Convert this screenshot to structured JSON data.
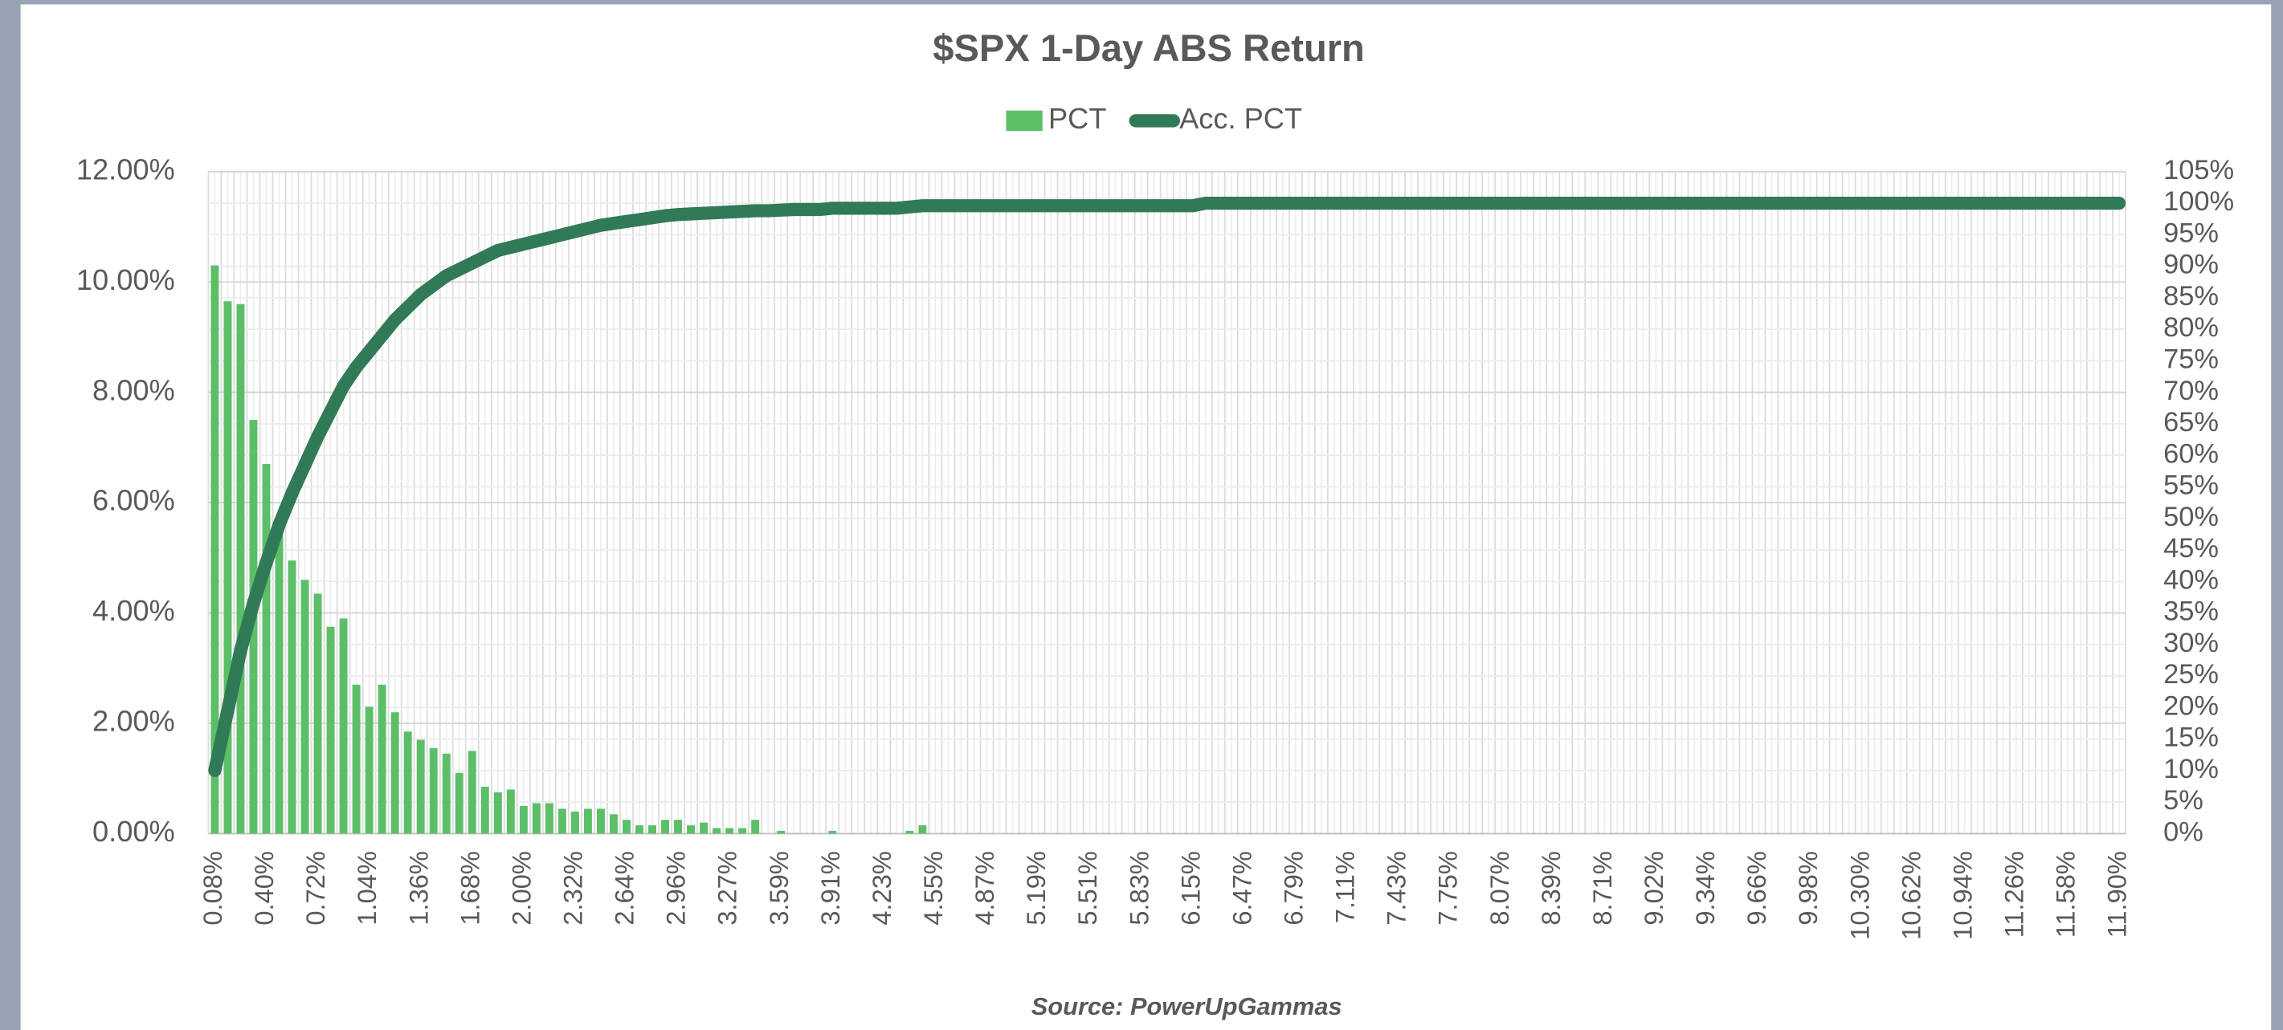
{
  "chart_data": {
    "type": "bar",
    "title": "$SPX 1-Day ABS Return",
    "source": "Source: PowerUpGammas",
    "categories": [
      "0.08%",
      null,
      null,
      null,
      "0.40%",
      null,
      null,
      null,
      "0.72%",
      null,
      null,
      null,
      "1.04%",
      null,
      null,
      null,
      "1.36%",
      null,
      null,
      null,
      "1.68%",
      null,
      null,
      null,
      "2.00%",
      null,
      null,
      null,
      "2.32%",
      null,
      null,
      null,
      "2.64%",
      null,
      null,
      null,
      "2.96%",
      null,
      null,
      null,
      "3.27%",
      null,
      null,
      null,
      "3.59%",
      null,
      null,
      null,
      "3.91%",
      null,
      null,
      null,
      "4.23%",
      null,
      null,
      null,
      "4.55%",
      null,
      null,
      null,
      "4.87%",
      null,
      null,
      null,
      "5.19%",
      null,
      null,
      null,
      "5.51%",
      null,
      null,
      null,
      "5.83%",
      null,
      null,
      null,
      "6.15%",
      null,
      null,
      null,
      "6.47%",
      null,
      null,
      null,
      "6.79%",
      null,
      null,
      null,
      "7.11%",
      null,
      null,
      null,
      "7.43%",
      null,
      null,
      null,
      "7.75%",
      null,
      null,
      null,
      "8.07%",
      null,
      null,
      null,
      "8.39%",
      null,
      null,
      null,
      "8.71%",
      null,
      null,
      null,
      "9.02%",
      null,
      null,
      null,
      "9.34%",
      null,
      null,
      null,
      "9.66%",
      null,
      null,
      null,
      "9.98%",
      null,
      null,
      null,
      "10.30%",
      null,
      null,
      null,
      "10.62%",
      null,
      null,
      null,
      "10.94%",
      null,
      null,
      null,
      "11.26%",
      null,
      null,
      null,
      "11.58%",
      null,
      null,
      null,
      "11.90%"
    ],
    "series": [
      {
        "name": "PCT",
        "type": "bar",
        "color": "#5cbf68",
        "values": [
          10.3,
          9.65,
          9.6,
          7.5,
          6.7,
          5.5,
          4.95,
          4.6,
          4.35,
          3.75,
          3.9,
          2.7,
          2.3,
          2.7,
          2.2,
          1.85,
          1.7,
          1.55,
          1.45,
          1.1,
          1.5,
          0.85,
          0.75,
          0.8,
          0.5,
          0.55,
          0.55,
          0.45,
          0.4,
          0.45,
          0.45,
          0.35,
          0.25,
          0.15,
          0.15,
          0.25,
          0.25,
          0.15,
          0.2,
          0.1,
          0.1,
          0.1,
          0.25,
          0,
          0.05,
          0,
          0,
          0,
          0.05,
          0,
          0,
          0,
          0,
          0,
          0.05,
          0.15,
          0,
          0,
          0,
          0,
          0,
          0,
          0,
          0,
          0,
          0,
          0,
          0,
          0,
          0,
          0,
          0,
          0,
          0,
          0,
          0,
          0,
          0,
          0,
          0,
          0,
          0,
          0,
          0,
          0,
          0,
          0,
          0,
          0,
          0,
          0,
          0,
          0,
          0,
          0,
          0,
          0,
          0,
          0,
          0,
          0,
          0,
          0,
          0,
          0,
          0,
          0,
          0,
          0,
          0,
          0,
          0,
          0,
          0,
          0,
          0,
          0,
          0,
          0,
          0,
          0,
          0,
          0,
          0,
          0,
          0,
          0,
          0,
          0,
          0,
          0,
          0,
          0,
          0,
          0,
          0,
          0,
          0,
          0,
          0,
          0,
          0,
          0,
          0,
          0,
          0,
          0,
          0,
          0
        ]
      },
      {
        "name": "Acc. PCT",
        "type": "line",
        "axis": "y2",
        "color": "#317a57",
        "values": [
          10,
          19.5,
          29,
          36.5,
          43,
          49,
          54,
          58.5,
          63,
          67,
          71,
          74,
          76.5,
          79,
          81.5,
          83.5,
          85.5,
          87,
          88.5,
          89.5,
          90.5,
          91.5,
          92.5,
          93,
          93.5,
          94,
          94.5,
          95,
          95.5,
          96,
          96.5,
          96.8,
          97.1,
          97.4,
          97.7,
          98,
          98.2,
          98.3,
          98.4,
          98.5,
          98.6,
          98.7,
          98.8,
          98.8,
          98.9,
          99,
          99,
          99,
          99.2,
          99.2,
          99.2,
          99.2,
          99.2,
          99.2,
          99.4,
          99.6,
          99.6,
          99.6,
          99.6,
          99.6,
          99.6,
          99.6,
          99.6,
          99.6,
          99.6,
          99.6,
          99.6,
          99.6,
          99.6,
          99.6,
          99.6,
          99.6,
          99.6,
          99.6,
          99.6,
          99.6,
          99.6,
          100,
          100,
          100,
          100,
          100,
          100,
          100,
          100,
          100,
          100,
          100,
          100,
          100,
          100,
          100,
          100,
          100,
          100,
          100,
          100,
          100,
          100,
          100,
          100,
          100,
          100,
          100,
          100,
          100,
          100,
          100,
          100,
          100,
          100,
          100,
          100,
          100,
          100,
          100,
          100,
          100,
          100,
          100,
          100,
          100,
          100,
          100,
          100,
          100,
          100,
          100,
          100,
          100,
          100,
          100,
          100,
          100,
          100,
          100,
          100,
          100,
          100,
          100,
          100,
          100,
          100,
          100,
          100,
          100,
          100,
          100,
          100
        ]
      }
    ],
    "ylim": [
      0,
      12
    ],
    "yticks": [
      {
        "value": 0,
        "label": "0.00%"
      },
      {
        "value": 2,
        "label": "2.00%"
      },
      {
        "value": 4,
        "label": "4.00%"
      },
      {
        "value": 6,
        "label": "6.00%"
      },
      {
        "value": 8,
        "label": "8.00%"
      },
      {
        "value": 10,
        "label": "10.00%"
      },
      {
        "value": 12,
        "label": "12.00%"
      }
    ],
    "y2lim": [
      0,
      105
    ],
    "y2ticks": [
      {
        "value": 0,
        "label": "0%"
      },
      {
        "value": 5,
        "label": "5%"
      },
      {
        "value": 10,
        "label": "10%"
      },
      {
        "value": 15,
        "label": "15%"
      },
      {
        "value": 20,
        "label": "20%"
      },
      {
        "value": 25,
        "label": "25%"
      },
      {
        "value": 30,
        "label": "30%"
      },
      {
        "value": 35,
        "label": "35%"
      },
      {
        "value": 40,
        "label": "40%"
      },
      {
        "value": 45,
        "label": "45%"
      },
      {
        "value": 50,
        "label": "50%"
      },
      {
        "value": 55,
        "label": "55%"
      },
      {
        "value": 60,
        "label": "60%"
      },
      {
        "value": 65,
        "label": "65%"
      },
      {
        "value": 70,
        "label": "70%"
      },
      {
        "value": 75,
        "label": "75%"
      },
      {
        "value": 80,
        "label": "80%"
      },
      {
        "value": 85,
        "label": "85%"
      },
      {
        "value": 90,
        "label": "90%"
      },
      {
        "value": 95,
        "label": "95%"
      },
      {
        "value": 100,
        "label": "100%"
      },
      {
        "value": 105,
        "label": "105%"
      }
    ],
    "grid": true,
    "legend": "top"
  }
}
